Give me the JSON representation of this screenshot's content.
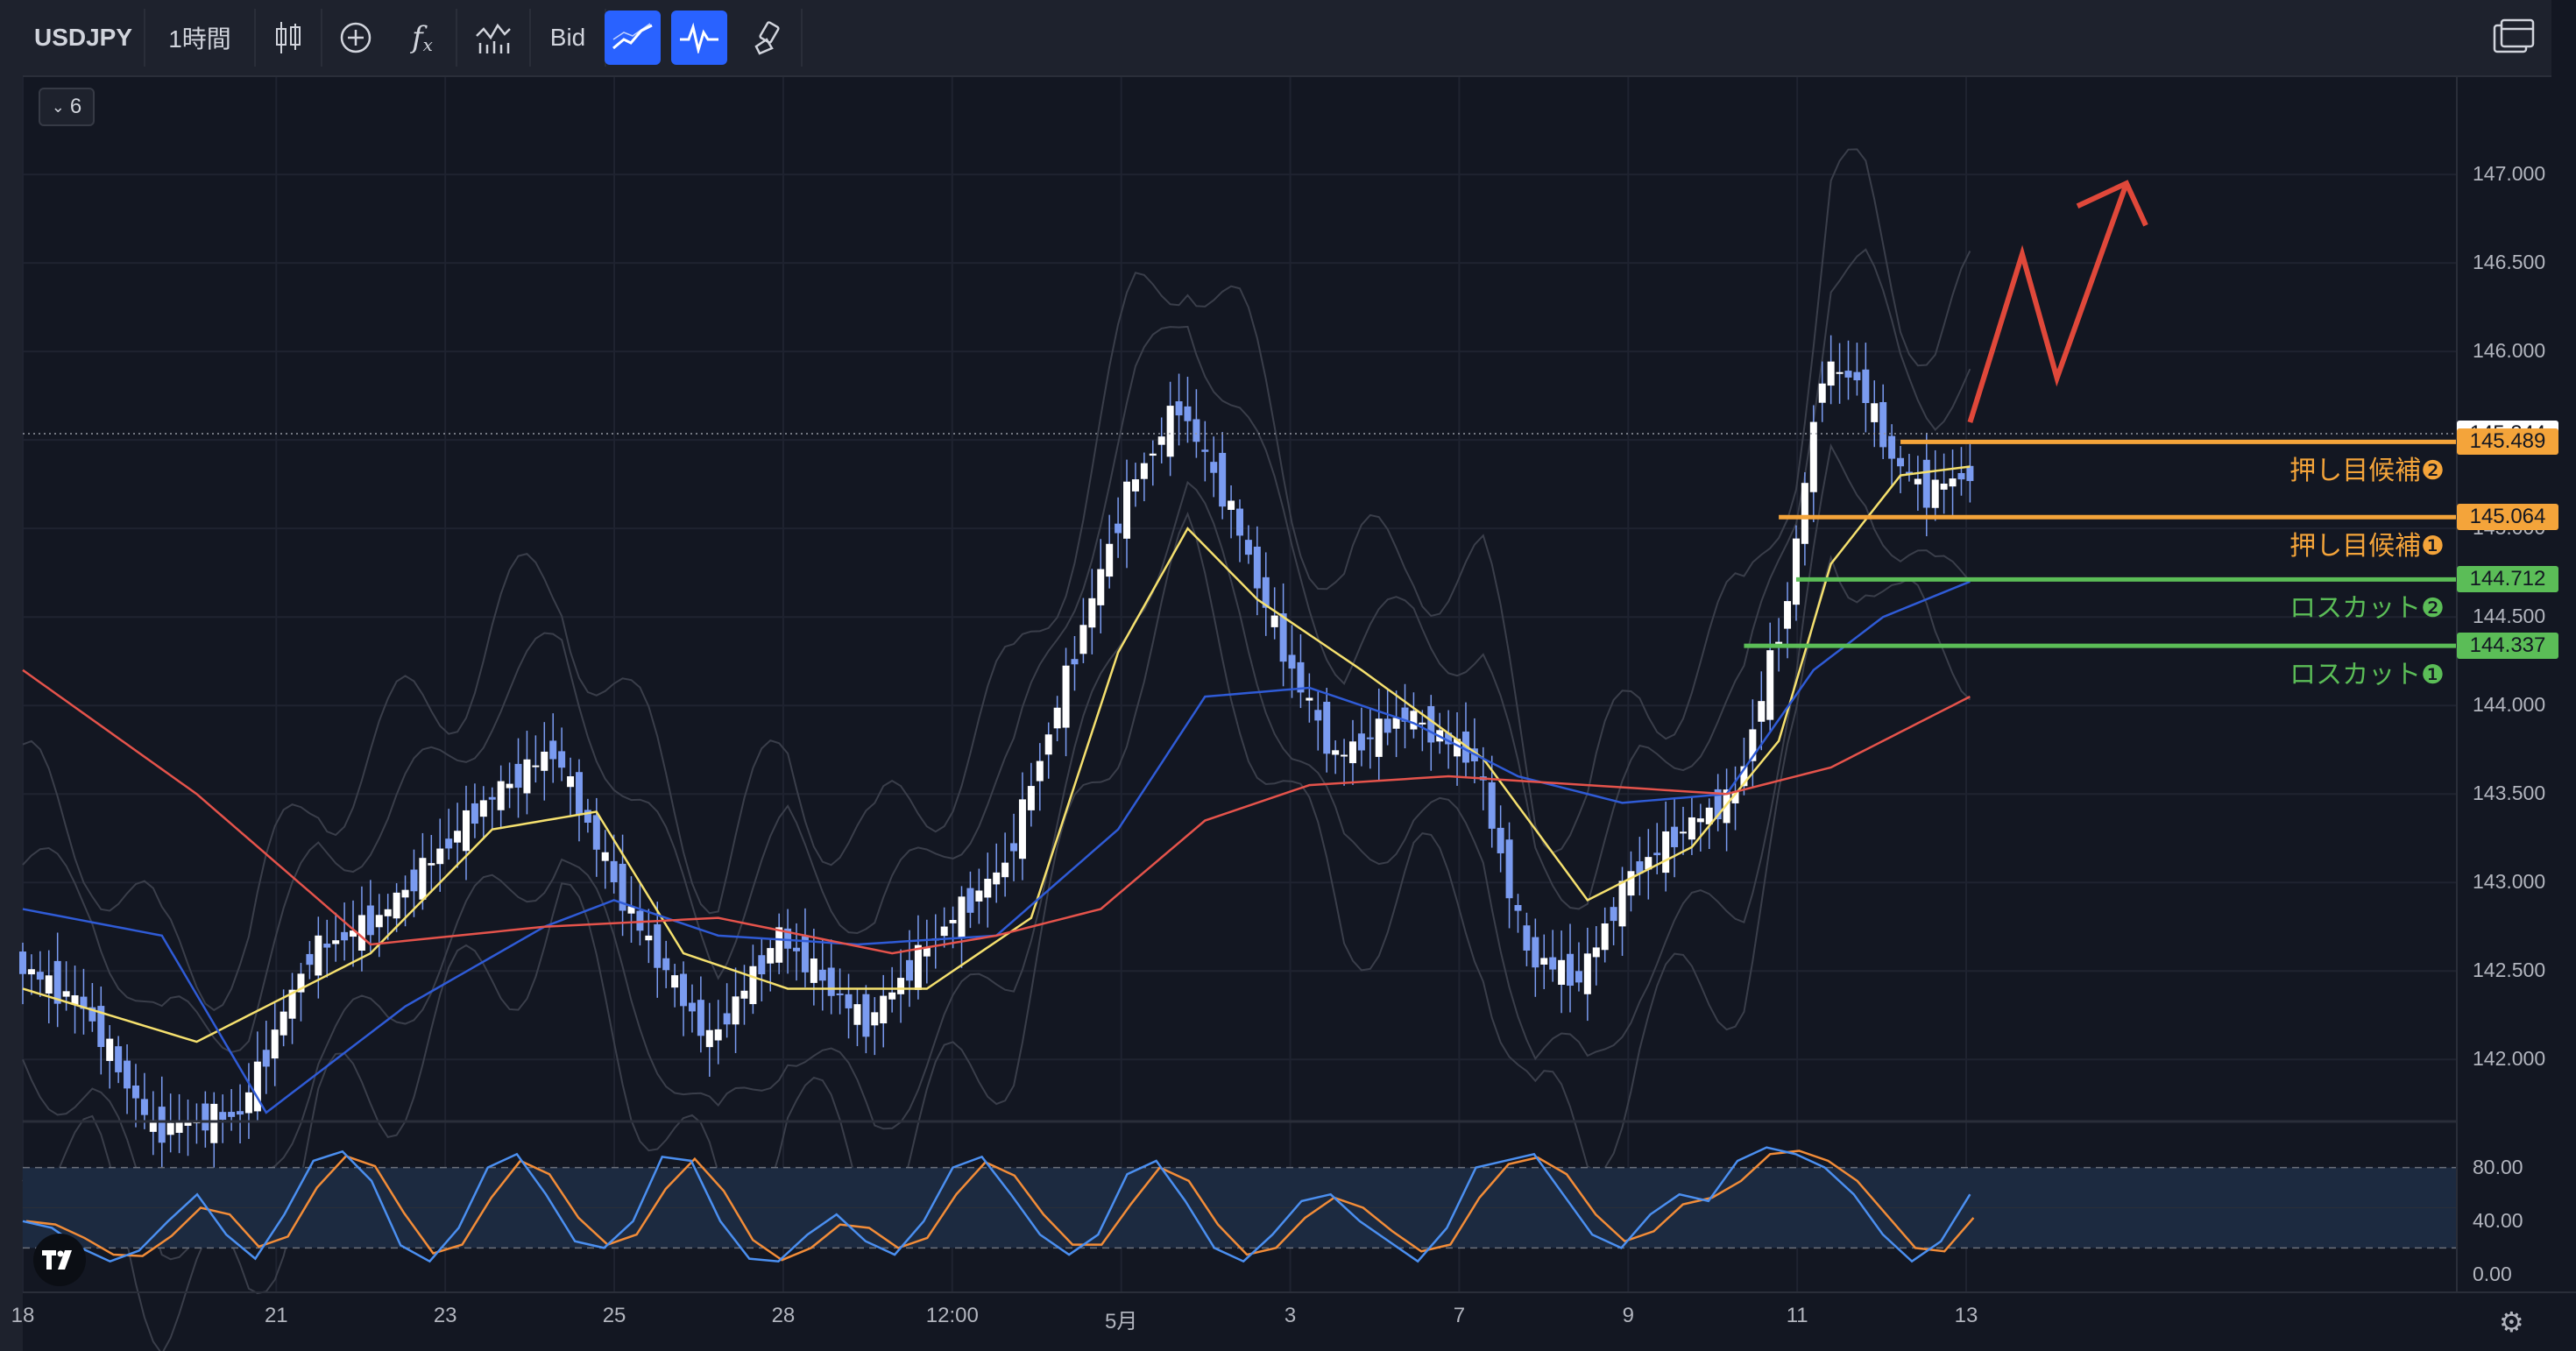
{
  "toolbar": {
    "symbol": "USDJPY",
    "interval": "1時間",
    "price_source": "Bid",
    "icons": [
      "candles-icon",
      "add-compare-icon",
      "indicators-icon",
      "templates-icon",
      "trend-line-icon",
      "oscillator-icon",
      "brush-icon",
      "layout-icon"
    ]
  },
  "legend": {
    "collapsed_count": "6"
  },
  "colors": {
    "background": "#131722",
    "candle": "#7a9bf0",
    "ma_short": "#f5e06e",
    "ma_mid": "#2f5bd6",
    "ma_long": "#e5534b",
    "support": "#f4a43a",
    "stoploss": "#5bbd57",
    "arrow": "#e0483a",
    "stoch_k": "#4b8ff0",
    "stoch_d": "#f28c38"
  },
  "chart_data": {
    "type": "line",
    "title": "",
    "symbol": "USDJPY",
    "timeframe": "1時間",
    "x_ticks": [
      "18",
      "21",
      "23",
      "25",
      "28",
      "12:00",
      "5月",
      "3",
      "7",
      "9",
      "11",
      "13"
    ],
    "y_ticks": [
      "147.000",
      "146.500",
      "146.000",
      "145.500",
      "145.000",
      "144.500",
      "144.000",
      "143.500",
      "143.000",
      "142.500",
      "142.000"
    ],
    "ylim": [
      141.65,
      147.55
    ],
    "current_price": "145.344",
    "price_path": [
      {
        "x": 0,
        "y": 142.55
      },
      {
        "x": 4,
        "y": 142.3
      },
      {
        "x": 8,
        "y": 141.6
      },
      {
        "x": 13,
        "y": 141.7
      },
      {
        "x": 17,
        "y": 142.6
      },
      {
        "x": 21,
        "y": 142.8
      },
      {
        "x": 27,
        "y": 143.45
      },
      {
        "x": 31,
        "y": 143.75
      },
      {
        "x": 35,
        "y": 142.9
      },
      {
        "x": 40,
        "y": 142.1
      },
      {
        "x": 44,
        "y": 142.7
      },
      {
        "x": 49,
        "y": 142.2
      },
      {
        "x": 53,
        "y": 142.7
      },
      {
        "x": 57,
        "y": 143.1
      },
      {
        "x": 61,
        "y": 144.3
      },
      {
        "x": 64,
        "y": 145.2
      },
      {
        "x": 67,
        "y": 145.7
      },
      {
        "x": 70,
        "y": 145.1
      },
      {
        "x": 73,
        "y": 144.3
      },
      {
        "x": 76,
        "y": 143.7
      },
      {
        "x": 80,
        "y": 143.95
      },
      {
        "x": 84,
        "y": 143.7
      },
      {
        "x": 87,
        "y": 142.6
      },
      {
        "x": 90,
        "y": 142.45
      },
      {
        "x": 93,
        "y": 143.05
      },
      {
        "x": 96,
        "y": 143.3
      },
      {
        "x": 99,
        "y": 143.5
      },
      {
        "x": 102,
        "y": 144.6
      },
      {
        "x": 104,
        "y": 145.9
      },
      {
        "x": 106,
        "y": 145.85
      },
      {
        "x": 108,
        "y": 145.4
      },
      {
        "x": 110,
        "y": 145.2
      },
      {
        "x": 112,
        "y": 145.3
      }
    ],
    "series": [
      {
        "name": "",
        "kind": "short_ma",
        "values": [
          [
            0,
            142.4
          ],
          [
            10,
            142.1
          ],
          [
            20,
            142.6
          ],
          [
            27,
            143.3
          ],
          [
            33,
            143.4
          ],
          [
            38,
            142.6
          ],
          [
            44,
            142.4
          ],
          [
            52,
            142.4
          ],
          [
            58,
            142.8
          ],
          [
            63,
            144.3
          ],
          [
            67,
            145.0
          ],
          [
            71,
            144.6
          ],
          [
            77,
            144.2
          ],
          [
            84,
            143.7
          ],
          [
            90,
            142.9
          ],
          [
            96,
            143.2
          ],
          [
            101,
            143.8
          ],
          [
            104,
            144.8
          ],
          [
            108,
            145.3
          ],
          [
            112,
            145.35
          ]
        ]
      },
      {
        "name": "",
        "kind": "mid_ma",
        "values": [
          [
            0,
            142.85
          ],
          [
            8,
            142.7
          ],
          [
            14,
            141.7
          ],
          [
            22,
            142.3
          ],
          [
            30,
            142.75
          ],
          [
            34,
            142.9
          ],
          [
            40,
            142.7
          ],
          [
            48,
            142.65
          ],
          [
            56,
            142.7
          ],
          [
            63,
            143.3
          ],
          [
            68,
            144.05
          ],
          [
            74,
            144.1
          ],
          [
            80,
            143.9
          ],
          [
            86,
            143.6
          ],
          [
            92,
            143.45
          ],
          [
            98,
            143.5
          ],
          [
            103,
            144.2
          ],
          [
            107,
            144.5
          ],
          [
            112,
            144.7
          ]
        ]
      },
      {
        "name": "",
        "kind": "long_ma",
        "values": [
          [
            0,
            144.2
          ],
          [
            10,
            143.5
          ],
          [
            20,
            142.65
          ],
          [
            30,
            142.75
          ],
          [
            40,
            142.8
          ],
          [
            50,
            142.6
          ],
          [
            56,
            142.7
          ],
          [
            62,
            142.85
          ],
          [
            68,
            143.35
          ],
          [
            74,
            143.55
          ],
          [
            82,
            143.6
          ],
          [
            90,
            143.55
          ],
          [
            98,
            143.5
          ],
          [
            104,
            143.65
          ],
          [
            112,
            144.05
          ]
        ]
      }
    ],
    "horizontal_lines": [
      {
        "label": "押し目候補❷",
        "value": 145.489,
        "tag": "145.489",
        "kind": "support"
      },
      {
        "label": "押し目候補❶",
        "value": 145.064,
        "tag": "145.064",
        "kind": "support"
      },
      {
        "label": "ロスカット❷",
        "value": 144.712,
        "tag": "144.712",
        "kind": "stoploss"
      },
      {
        "label": "ロスカット❶",
        "value": 144.337,
        "tag": "144.337",
        "kind": "stoploss"
      }
    ],
    "annotation": {
      "kind": "zigzag-arrow-up",
      "points": [
        [
          112,
          145.6
        ],
        [
          115,
          146.55
        ],
        [
          117,
          145.85
        ],
        [
          121,
          146.95
        ]
      ]
    },
    "oscillator": {
      "y_ticks": [
        "80.00",
        "40.00",
        "0.00"
      ],
      "ylim": [
        0,
        100
      ],
      "band": [
        20,
        80
      ],
      "k_values": [
        40,
        35,
        20,
        10,
        18,
        40,
        60,
        30,
        12,
        45,
        85,
        92,
        70,
        22,
        10,
        35,
        80,
        90,
        60,
        25,
        20,
        40,
        88,
        85,
        40,
        12,
        10,
        30,
        45,
        25,
        15,
        40,
        80,
        88,
        60,
        30,
        15,
        30,
        75,
        85,
        55,
        20,
        10,
        30,
        55,
        60,
        40,
        25,
        10,
        35,
        80,
        85,
        90,
        60,
        30,
        20,
        45,
        60,
        55,
        85,
        95,
        90,
        80,
        60,
        30,
        10,
        25,
        60
      ]
    }
  }
}
